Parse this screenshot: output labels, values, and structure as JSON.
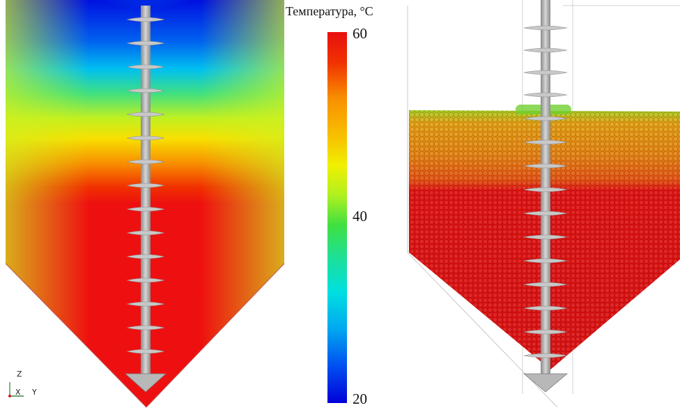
{
  "legend": {
    "title": "Температура, °С",
    "ticks": [
      {
        "value": "60"
      },
      {
        "value": "40"
      },
      {
        "value": "20"
      }
    ],
    "colors": [
      "#0000d8",
      "#0050f0",
      "#00a8f0",
      "#00e0e0",
      "#20e090",
      "#40e040",
      "#b0f020",
      "#f0f000",
      "#f8c000",
      "#f89000",
      "#f05000",
      "#e81010"
    ]
  },
  "triad": {
    "z": "Z",
    "x": "X",
    "y": "Y"
  },
  "panels": {
    "left": {
      "name": "continuum-temperature-field"
    },
    "right": {
      "name": "particle-temperature-field"
    }
  }
}
